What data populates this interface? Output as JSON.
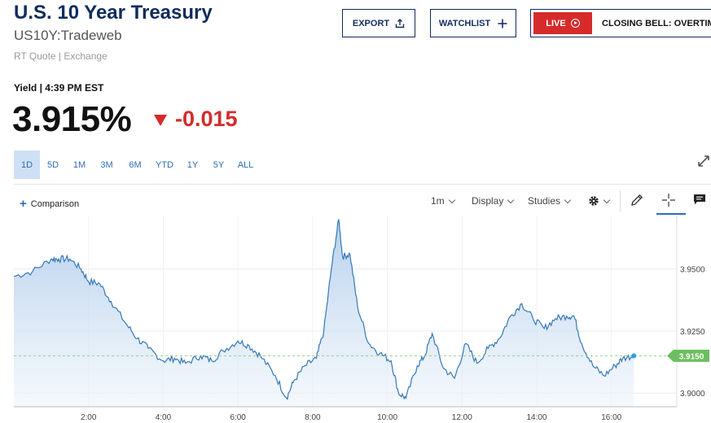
{
  "header": {
    "title": "U.S. 10 Year Treasury",
    "symbol": "US10Y:Tradeweb",
    "subnote": "RT Quote | Exchange"
  },
  "actions": {
    "export_label": "EXPORT",
    "watchlist_label": "WATCHLIST",
    "live_label": "LIVE",
    "live_program": "CLOSING BELL: OVERTIME"
  },
  "quote": {
    "yield_label": "Yield | 4:39 PM EST",
    "price": "3.915%",
    "change": "-0.015",
    "change_color": "#d52b2b"
  },
  "ranges": {
    "items": [
      "1D",
      "5D",
      "1M",
      "3M",
      "6M",
      "YTD",
      "1Y",
      "5Y",
      "ALL"
    ],
    "active": "1D"
  },
  "toolbar": {
    "comparison_label": "Comparison",
    "interval_label": "1m",
    "display_label": "Display",
    "studies_label": "Studies"
  },
  "chart_data": {
    "type": "area",
    "x_ticks": [
      "2:00",
      "4:00",
      "6:00",
      "8:00",
      "10:00",
      "12:00",
      "14:00",
      "16:00"
    ],
    "y_ticks": [
      "3.9500",
      "3.9250",
      "3.9000"
    ],
    "y_tick_values": [
      3.95,
      3.925,
      3.9
    ],
    "ylim": [
      3.8945,
      3.9715
    ],
    "current_value_label": "3.9150",
    "current_value": 3.915,
    "x_unit": "hours",
    "x_range": [
      0.0,
      17.75
    ],
    "series": [
      {
        "x": [
          0.0,
          0.5,
          1.0,
          1.2,
          1.5,
          1.8,
          2.0,
          2.3,
          2.6,
          3.0,
          3.3,
          3.6,
          4.0,
          4.3,
          4.6,
          5.0,
          5.3,
          5.6,
          6.0,
          6.3,
          6.6,
          7.0,
          7.3,
          7.5,
          7.8,
          8.1,
          8.3,
          8.5,
          8.7,
          8.8,
          9.0,
          9.2,
          9.5,
          9.8,
          10.1,
          10.3,
          10.5,
          10.8,
          11.0,
          11.2,
          11.5,
          11.8,
          12.1,
          12.4,
          12.7,
          13.0,
          13.3,
          13.6,
          13.9,
          14.2,
          14.5,
          14.8,
          15.0,
          15.2,
          15.5,
          15.8,
          16.1,
          16.3,
          16.6
        ],
        "y": [
          3.947,
          3.949,
          3.954,
          3.954,
          3.954,
          3.95,
          3.945,
          3.944,
          3.937,
          3.928,
          3.922,
          3.918,
          3.913,
          3.914,
          3.912,
          3.915,
          3.913,
          3.917,
          3.921,
          3.919,
          3.915,
          3.907,
          3.898,
          3.905,
          3.911,
          3.914,
          3.925,
          3.95,
          3.97,
          3.955,
          3.956,
          3.935,
          3.92,
          3.916,
          3.913,
          3.9,
          3.898,
          3.911,
          3.915,
          3.924,
          3.91,
          3.906,
          3.92,
          3.912,
          3.918,
          3.922,
          3.931,
          3.936,
          3.93,
          3.926,
          3.93,
          3.931,
          3.931,
          3.92,
          3.911,
          3.907,
          3.911,
          3.914,
          3.915
        ]
      }
    ]
  }
}
